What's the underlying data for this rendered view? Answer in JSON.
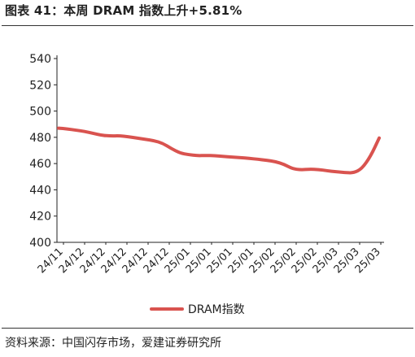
{
  "title": "图表 41：本周 DRAM 指数上升+5.81%",
  "source": "资料来源：中国闪存市场，爱建证券研究所",
  "chart_data": {
    "type": "line",
    "ylim": [
      400,
      540
    ],
    "yticks": [
      400,
      420,
      440,
      460,
      480,
      500,
      520,
      540
    ],
    "x_labels": [
      "24/11",
      "24/12",
      "24/12",
      "24/12",
      "24/12",
      "24/12",
      "25/01",
      "25/01",
      "25/01",
      "25/01",
      "25/02",
      "25/02",
      "25/02",
      "25/03",
      "25/03",
      "25/03"
    ],
    "series": [
      {
        "name": "DRAM指数",
        "color": "#d9534f",
        "values": [
          487,
          486.4,
          485.5,
          484.5,
          483,
          481.5,
          481,
          481.2,
          480.5,
          479.5,
          478.5,
          477.5,
          475.5,
          471.5,
          468,
          466.8,
          466,
          466.2,
          466,
          465.5,
          465,
          464.5,
          464,
          463.3,
          462.5,
          461.5,
          459.5,
          456,
          455.2,
          455.8,
          455.5,
          454.5,
          453.8,
          453.2,
          452.8,
          456,
          465.5,
          479.5
        ]
      }
    ],
    "legend_position": "bottom",
    "grid": false
  }
}
